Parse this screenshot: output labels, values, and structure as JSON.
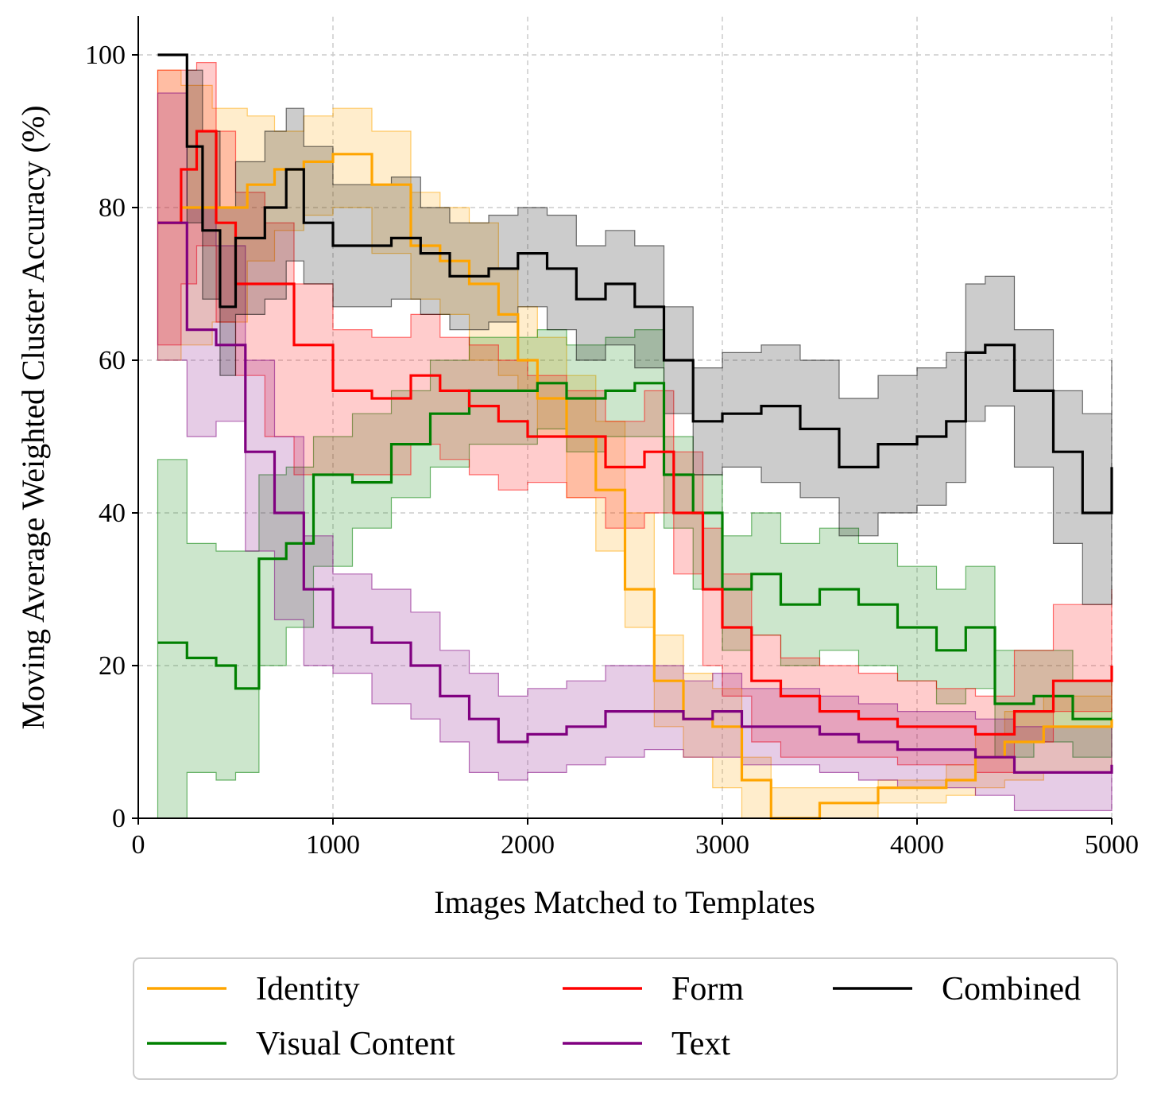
{
  "chart_data": {
    "type": "line",
    "title": "",
    "xlabel": "Images Matched to Templates",
    "ylabel": "Moving Average Weighted Cluster Accuracy (%)",
    "xlim": [
      0,
      5000
    ],
    "ylim": [
      0,
      105
    ],
    "xticks": [
      0,
      1000,
      2000,
      3000,
      4000,
      5000
    ],
    "yticks": [
      0,
      20,
      40,
      60,
      80,
      100
    ],
    "grid": true,
    "grid_style": "dashed",
    "legend_position": "bottom",
    "line_style": "step with shaded band",
    "series": [
      {
        "name": "Identity",
        "color": "#ffa500",
        "x": [
          100,
          220,
          380,
          560,
          700,
          850,
          1000,
          1200,
          1400,
          1550,
          1700,
          1850,
          1950,
          2050,
          2200,
          2350,
          2500,
          2650,
          2800,
          2950,
          3100,
          3250,
          3500,
          3800,
          4000,
          4150,
          4300,
          4450,
          4650,
          5000
        ],
        "y": [
          78,
          80,
          80,
          83,
          85,
          86,
          87,
          83,
          75,
          73,
          70,
          66,
          60,
          55,
          50,
          43,
          30,
          18,
          13,
          12,
          5,
          0,
          2,
          4,
          4,
          5,
          8,
          10,
          12,
          13
        ],
        "lower": [
          60,
          62,
          65,
          73,
          77,
          79,
          80,
          74,
          68,
          66,
          60,
          58,
          56,
          50,
          42,
          35,
          25,
          12,
          8,
          4,
          0,
          0,
          0,
          2,
          2,
          3,
          4,
          5,
          6,
          6
        ],
        "upper": [
          98,
          96,
          93,
          92,
          90,
          92,
          93,
          90,
          82,
          80,
          78,
          72,
          67,
          63,
          58,
          52,
          40,
          24,
          19,
          17,
          8,
          4,
          4,
          5,
          5,
          7,
          11,
          14,
          16,
          18
        ]
      },
      {
        "name": "Visual Content",
        "color": "#008000",
        "x": [
          100,
          250,
          400,
          500,
          620,
          760,
          900,
          1100,
          1300,
          1500,
          1700,
          1900,
          2050,
          2200,
          2400,
          2550,
          2700,
          2850,
          3000,
          3150,
          3300,
          3500,
          3700,
          3900,
          4100,
          4250,
          4400,
          4600,
          4800,
          5000
        ],
        "y": [
          23,
          21,
          20,
          17,
          34,
          36,
          45,
          44,
          49,
          53,
          56,
          56,
          57,
          55,
          56,
          57,
          45,
          40,
          30,
          32,
          28,
          30,
          28,
          25,
          22,
          25,
          15,
          16,
          13,
          13
        ],
        "lower": [
          0,
          6,
          5,
          6,
          20,
          25,
          33,
          38,
          42,
          46,
          49,
          49,
          51,
          48,
          50,
          50,
          38,
          30,
          22,
          24,
          20,
          22,
          20,
          18,
          15,
          17,
          8,
          10,
          8,
          8
        ],
        "upper": [
          47,
          36,
          35,
          35,
          45,
          46,
          50,
          53,
          56,
          60,
          63,
          63,
          64,
          62,
          63,
          64,
          50,
          45,
          37,
          40,
          36,
          38,
          36,
          33,
          30,
          33,
          22,
          22,
          18,
          18
        ]
      },
      {
        "name": "Form",
        "color": "#ff0000",
        "x": [
          100,
          220,
          300,
          400,
          500,
          650,
          800,
          1000,
          1200,
          1400,
          1550,
          1700,
          1850,
          2000,
          2200,
          2400,
          2600,
          2750,
          2900,
          3000,
          3150,
          3300,
          3500,
          3700,
          3900,
          4100,
          4300,
          4500,
          4700,
          5000
        ],
        "y": [
          78,
          85,
          90,
          78,
          70,
          70,
          62,
          56,
          55,
          58,
          56,
          54,
          52,
          50,
          50,
          46,
          48,
          40,
          30,
          25,
          18,
          16,
          14,
          13,
          12,
          12,
          11,
          14,
          18,
          20
        ],
        "lower": [
          62,
          70,
          75,
          65,
          58,
          50,
          45,
          45,
          45,
          49,
          47,
          45,
          43,
          44,
          42,
          38,
          40,
          32,
          20,
          16,
          10,
          8,
          8,
          8,
          7,
          7,
          6,
          10,
          14,
          15
        ],
        "upper": [
          98,
          98,
          99,
          90,
          82,
          78,
          70,
          64,
          63,
          66,
          63,
          62,
          60,
          58,
          56,
          52,
          56,
          48,
          38,
          32,
          24,
          21,
          20,
          19,
          18,
          17,
          16,
          22,
          28,
          30
        ]
      },
      {
        "name": "Text",
        "color": "#800080",
        "x": [
          100,
          250,
          400,
          550,
          700,
          850,
          1000,
          1200,
          1400,
          1550,
          1700,
          1850,
          2000,
          2200,
          2400,
          2600,
          2800,
          2950,
          3100,
          3300,
          3500,
          3700,
          3900,
          4100,
          4300,
          4500,
          4700,
          5000
        ],
        "y": [
          78,
          64,
          62,
          48,
          40,
          30,
          25,
          23,
          20,
          16,
          13,
          10,
          11,
          12,
          14,
          14,
          13,
          14,
          12,
          12,
          11,
          10,
          9,
          9,
          8,
          6,
          6,
          7
        ],
        "lower": [
          60,
          50,
          52,
          35,
          26,
          20,
          19,
          15,
          13,
          10,
          6,
          5,
          6,
          7,
          8,
          9,
          8,
          8,
          7,
          7,
          6,
          5,
          4,
          4,
          3,
          1,
          1,
          1
        ],
        "upper": [
          95,
          80,
          75,
          60,
          50,
          37,
          32,
          30,
          27,
          22,
          19,
          16,
          17,
          18,
          20,
          20,
          18,
          19,
          17,
          17,
          16,
          15,
          14,
          14,
          13,
          12,
          12,
          12
        ]
      },
      {
        "name": "Combined",
        "color": "#000000",
        "x": [
          100,
          250,
          330,
          420,
          500,
          650,
          760,
          850,
          1000,
          1200,
          1300,
          1450,
          1600,
          1800,
          1950,
          2100,
          2250,
          2400,
          2550,
          2700,
          2850,
          3000,
          3200,
          3400,
          3600,
          3800,
          4000,
          4150,
          4250,
          4350,
          4500,
          4700,
          4850,
          5000
        ],
        "y": [
          100,
          88,
          77,
          67,
          76,
          80,
          85,
          78,
          75,
          75,
          76,
          74,
          71,
          72,
          74,
          72,
          68,
          70,
          67,
          60,
          52,
          53,
          54,
          51,
          46,
          49,
          50,
          52,
          61,
          62,
          56,
          48,
          40,
          46
        ],
        "lower": [
          100,
          78,
          68,
          58,
          66,
          68,
          73,
          70,
          67,
          67,
          68,
          66,
          64,
          65,
          67,
          64,
          60,
          62,
          59,
          53,
          45,
          46,
          44,
          42,
          37,
          40,
          41,
          44,
          52,
          54,
          46,
          36,
          28,
          32
        ],
        "upper": [
          100,
          98,
          90,
          80,
          86,
          90,
          93,
          88,
          83,
          83,
          84,
          80,
          78,
          79,
          80,
          79,
          75,
          77,
          75,
          67,
          59,
          61,
          62,
          60,
          55,
          58,
          59,
          61,
          70,
          71,
          64,
          56,
          53,
          60
        ]
      }
    ]
  },
  "legend": {
    "items": [
      {
        "label": "Identity",
        "color": "#ffa500"
      },
      {
        "label": "Form",
        "color": "#ff0000"
      },
      {
        "label": "Combined",
        "color": "#000000"
      },
      {
        "label": "Visual Content",
        "color": "#008000"
      },
      {
        "label": "Text",
        "color": "#800080"
      }
    ]
  }
}
